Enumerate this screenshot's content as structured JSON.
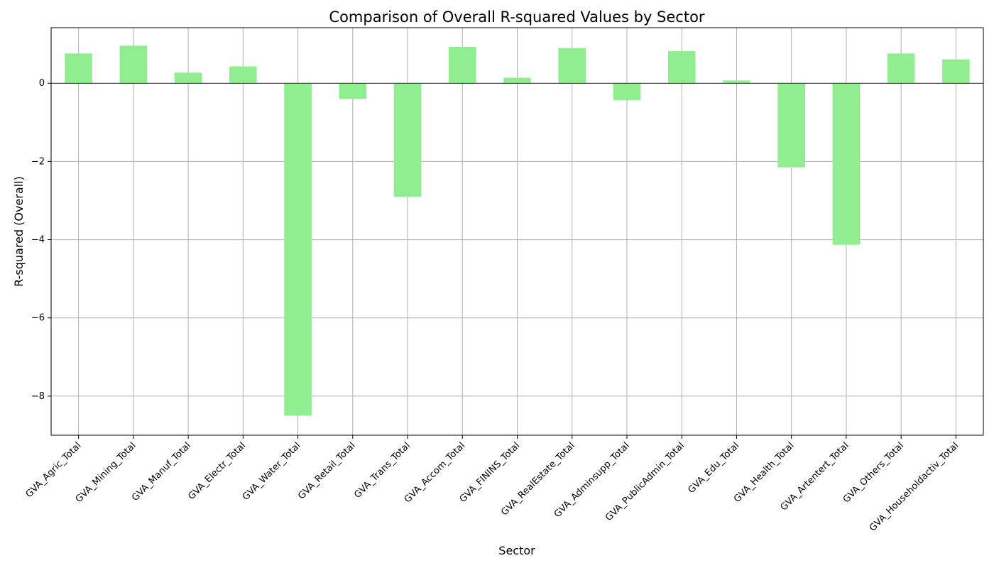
{
  "chart_data": {
    "type": "bar",
    "title": "Comparison of Overall R-squared Values by Sector",
    "xlabel": "Sector",
    "ylabel": "R-squared (Overall)",
    "categories": [
      "GVA_Agric_Total",
      "GVA_Mining_Total",
      "GVA_Manuf_Total",
      "GVA_Electr_Total",
      "GVA_Water_Total",
      "GVA_Retail_Total",
      "GVA_Trans_Total",
      "GVA_Accom_Total",
      "GVA_FININS_Total",
      "GVA_RealEstate_Total",
      "GVA_Adminsupp_Total",
      "GVA_PublicAdmin_Total",
      "GVA_Edu_Total",
      "GVA_Health_Total",
      "GVA_Artentert_Total",
      "GVA_Others_Total",
      "GVA_Householdactiv_Total"
    ],
    "values": [
      0.76,
      0.96,
      0.27,
      0.43,
      -8.5,
      -0.4,
      -2.9,
      0.93,
      0.14,
      0.9,
      -0.43,
      0.82,
      0.07,
      -2.15,
      -4.13,
      0.76,
      0.61
    ],
    "ylim": [
      -9.0,
      1.42
    ],
    "yticks": [
      -8,
      -6,
      -4,
      -2,
      0
    ],
    "grid": true,
    "bar_color": "#90ee90"
  }
}
